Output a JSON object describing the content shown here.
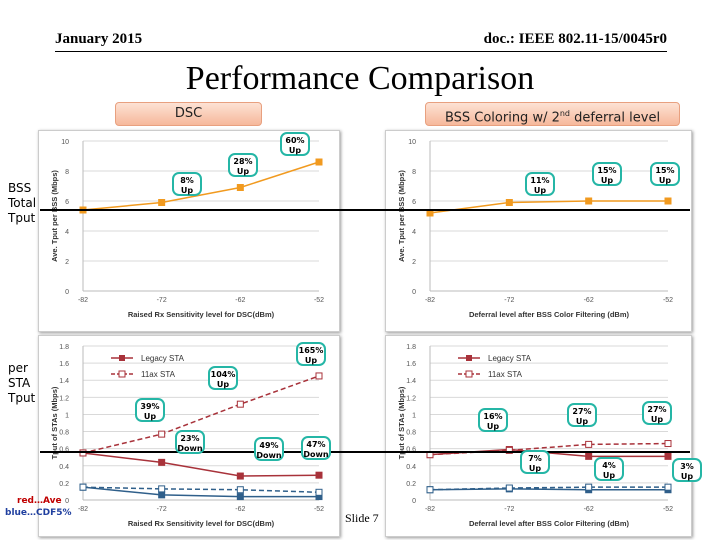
{
  "header": {
    "date": "January 2015",
    "doc": "doc.: IEEE 802.11-15/0045r0"
  },
  "title": "Performance Comparison",
  "labels": {
    "dsc": "DSC",
    "bss_prefix": "BSS Coloring w/ 2",
    "bss_sup": "nd",
    "bss_suffix": " deferral level"
  },
  "side": {
    "total_1": "BSS",
    "total_2": "Total",
    "total_3": "Tput",
    "sta_1": "per",
    "sta_2": "STA",
    "sta_3": "Tput"
  },
  "footer": {
    "red": "red…Ave",
    "blue": "blue…CDF5%",
    "slide": "Slide 7"
  },
  "chart_data": [
    {
      "id": "tl",
      "type": "line",
      "x": [
        -82,
        -72,
        -62,
        -52
      ],
      "xlim": [
        -82,
        -52
      ],
      "ylim": [
        0,
        10
      ],
      "yticks": [
        0,
        2,
        4,
        6,
        8,
        10
      ],
      "ylabel": "Ave. Tput per BSS (Mbps)",
      "xlabel": "Raised Rx Sensitivity level for DSC(dBm)",
      "series": [
        {
          "name": "total",
          "color": "#f19a1f",
          "values": [
            5.4,
            5.9,
            6.9,
            8.6
          ]
        }
      ]
    },
    {
      "id": "tr",
      "type": "line",
      "x": [
        -82,
        -72,
        -62,
        -52
      ],
      "xlim": [
        -82,
        -52
      ],
      "ylim": [
        0,
        10
      ],
      "yticks": [
        0,
        2,
        4,
        6,
        8,
        10
      ],
      "ylabel": "Ave. Tput per BSS (Mbps)",
      "xlabel": "Deferral level after BSS Color Filtering (dBm)",
      "series": [
        {
          "name": "total",
          "color": "#f19a1f",
          "values": [
            5.2,
            5.9,
            6.0,
            6.0
          ]
        }
      ]
    },
    {
      "id": "bl",
      "type": "line",
      "x": [
        -82,
        -72,
        -62,
        -52
      ],
      "xlim": [
        -82,
        -52
      ],
      "ylim": [
        0,
        1.8
      ],
      "yticks": [
        0,
        0.2,
        0.4,
        0.6,
        0.8,
        1,
        1.2,
        1.4,
        1.6,
        1.8
      ],
      "ylabel": "Tput of STAs (Mbps)",
      "xlabel": "Raised Rx Sensitivity level for DSC(dBm)",
      "legend": [
        "Legacy STA",
        "11ax STA"
      ],
      "series": [
        {
          "name": "Legacy STA ave",
          "color": "#a8323a",
          "dash": false,
          "marker": "filled",
          "values": [
            0.55,
            0.44,
            0.28,
            0.29
          ]
        },
        {
          "name": "11ax STA ave",
          "color": "#a8323a",
          "dash": true,
          "marker": "open",
          "values": [
            0.55,
            0.77,
            1.12,
            1.45
          ]
        },
        {
          "name": "Legacy STA CDF5%",
          "color": "#2f5f8a",
          "dash": false,
          "marker": "filled",
          "values": [
            0.15,
            0.06,
            0.04,
            0.04
          ]
        },
        {
          "name": "11ax STA CDF5%",
          "color": "#2f5f8a",
          "dash": true,
          "marker": "open",
          "values": [
            0.15,
            0.13,
            0.12,
            0.09
          ]
        }
      ]
    },
    {
      "id": "br",
      "type": "line",
      "x": [
        -82,
        -72,
        -62,
        -52
      ],
      "xlim": [
        -82,
        -52
      ],
      "ylim": [
        0,
        1.8
      ],
      "yticks": [
        0,
        0.2,
        0.4,
        0.6,
        0.8,
        1,
        1.2,
        1.4,
        1.6,
        1.8
      ],
      "ylabel": "Tput of STAs (Mbps)",
      "xlabel": "Deferral level after BSS Color Filtering (dBm)",
      "legend": [
        "Legacy STA",
        "11ax STA"
      ],
      "series": [
        {
          "name": "Legacy STA ave",
          "color": "#a8323a",
          "dash": false,
          "marker": "filled",
          "values": [
            0.53,
            0.59,
            0.51,
            0.51
          ]
        },
        {
          "name": "11ax STA ave",
          "color": "#a8323a",
          "dash": true,
          "marker": "open",
          "values": [
            0.53,
            0.58,
            0.65,
            0.66
          ]
        },
        {
          "name": "Legacy STA CDF5%",
          "color": "#2f5f8a",
          "dash": false,
          "marker": "filled",
          "values": [
            0.12,
            0.13,
            0.12,
            0.12
          ]
        },
        {
          "name": "11ax STA CDF5%",
          "color": "#2f5f8a",
          "dash": true,
          "marker": "open",
          "values": [
            0.12,
            0.14,
            0.15,
            0.15
          ]
        }
      ]
    }
  ],
  "callouts": {
    "c1": [
      "8%",
      "Up"
    ],
    "c2": [
      "28%",
      "Up"
    ],
    "c3": [
      "60%",
      "Up"
    ],
    "c4": [
      "11%",
      "Up"
    ],
    "c5": [
      "15%",
      "Up"
    ],
    "c6": [
      "15%",
      "Up"
    ],
    "c7": [
      "165%",
      "Up"
    ],
    "c8": [
      "104%",
      "Up"
    ],
    "c9": [
      "39%",
      "Up"
    ],
    "c10": [
      "23%",
      "Down"
    ],
    "c11": [
      "49%",
      "Down"
    ],
    "c12": [
      "47%",
      "Down"
    ],
    "c13": [
      "16%",
      "Up"
    ],
    "c14": [
      "27%",
      "Up"
    ],
    "c15": [
      "27%",
      "Up"
    ],
    "c16": [
      "7%",
      "Up"
    ],
    "c17": [
      "4%",
      "Up"
    ],
    "c18": [
      "3%",
      "Up"
    ]
  }
}
